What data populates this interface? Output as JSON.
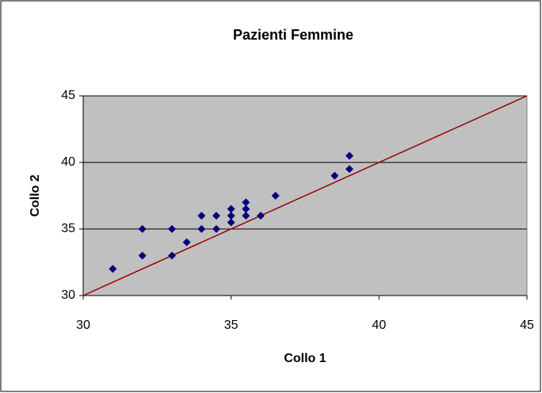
{
  "chart_data": {
    "type": "scatter",
    "title": "Pazienti Femmine",
    "x_label": "Collo 1",
    "y_label": "Collo 2",
    "x": [
      31,
      32,
      32,
      33,
      33,
      33.5,
      34,
      34,
      34.5,
      34.5,
      35,
      35,
      35,
      35.5,
      35.5,
      35.5,
      36,
      36.5,
      38.5,
      39,
      39
    ],
    "values": [
      32,
      35,
      33,
      35,
      33,
      34,
      36,
      35,
      36,
      35,
      36.5,
      36,
      35.5,
      37,
      36.5,
      36,
      36,
      37.5,
      39,
      40.5,
      39.5
    ],
    "color": "#000080",
    "line": {
      "x": [
        30,
        45
      ],
      "values": [
        30,
        45
      ],
      "color": "#990000"
    },
    "xlim": [
      30,
      45
    ],
    "ylim": [
      30,
      45
    ],
    "xticks": [
      30,
      35,
      40,
      45
    ],
    "yticks": [
      30,
      35,
      40,
      45
    ],
    "grid": true,
    "plot_background": "#c0c0c0"
  }
}
